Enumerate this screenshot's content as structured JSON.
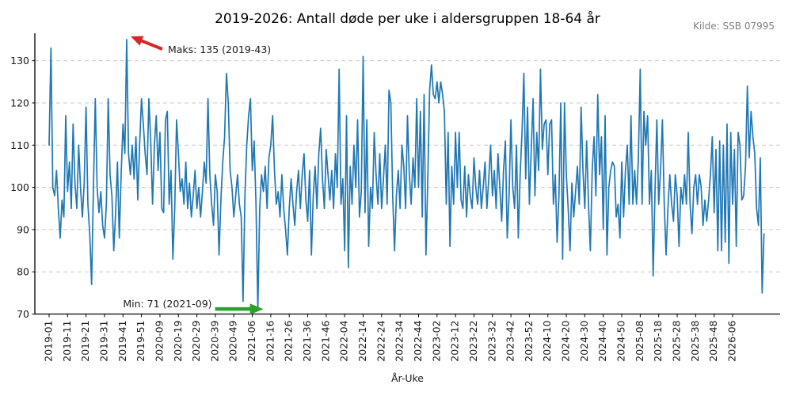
{
  "header": {
    "title": "2019-2026: Antall døde per uke i aldersgruppen 18-64 år",
    "source": "Kilde: SSB 07995"
  },
  "chart_data": {
    "type": "line",
    "title": "2019-2026: Antall døde per uke i aldersgruppen 18-64 år",
    "xlabel": "År-Uke",
    "ylabel": "",
    "ylim": [
      70,
      136.5
    ],
    "yticks": [
      70,
      80,
      90,
      100,
      110,
      120,
      130
    ],
    "grid": "horizontal-dashed",
    "legend": "none",
    "line_color": "#1f77b4",
    "grid_color": "#c9c9c9",
    "axis_color": "#000000",
    "x_tick_step_weeks": 10,
    "x_tick_labels": [
      "2019-01",
      "2019-11",
      "2019-21",
      "2019-31",
      "2019-41",
      "2019-51",
      "2020-09",
      "2020-19",
      "2020-29",
      "2020-39",
      "2020-49",
      "2021-06",
      "2021-16",
      "2021-26",
      "2021-36",
      "2021-46",
      "2022-04",
      "2022-14",
      "2022-24",
      "2022-34",
      "2022-44",
      "2023-02",
      "2023-12",
      "2023-22",
      "2023-32",
      "2023-42",
      "2023-52",
      "2024-10",
      "2024-20",
      "2024-30",
      "2024-40",
      "2024-50",
      "2025-08",
      "2025-18",
      "2025-28",
      "2025-38",
      "2025-48",
      "2026-06"
    ],
    "start_week": "2019-01",
    "year_order": [
      "2019",
      "2020",
      "2021",
      "2022",
      "2023",
      "2024",
      "2025",
      "2026"
    ],
    "weeks_per_year": {
      "2019": 52,
      "2020": 53,
      "2021": 52,
      "2022": 52,
      "2023": 52,
      "2024": 52,
      "2025": 52,
      "2026": 23
    },
    "series_name": "Antall døde per uke (18-64 år)",
    "values_by_year": {
      "2019": [
        110,
        133,
        100,
        98,
        104,
        95,
        88,
        97,
        93,
        117,
        99,
        106,
        95,
        115,
        101,
        95,
        110,
        100,
        93,
        101,
        119,
        96,
        89,
        77,
        100,
        121,
        100,
        94,
        99,
        91,
        88,
        96,
        121,
        103,
        98,
        85,
        94,
        106,
        88,
        103,
        115,
        108,
        135,
        108,
        103,
        110,
        102,
        112,
        97,
        110,
        121,
        115
      ],
      "2020": [
        108,
        103,
        121,
        111,
        96,
        110,
        117,
        104,
        113,
        95,
        94,
        116,
        118,
        96,
        104,
        83,
        95,
        116,
        108,
        99,
        102,
        96,
        106,
        95,
        101,
        93,
        98,
        104,
        95,
        100,
        93,
        99,
        106,
        101,
        121,
        103,
        96,
        91,
        103,
        99,
        84,
        97,
        106,
        112,
        127,
        120,
        104,
        100,
        93,
        98,
        103,
        96,
        93
      ],
      "2021": [
        73,
        98,
        110,
        117,
        121,
        104,
        111,
        96,
        71,
        95,
        103,
        99,
        105,
        95,
        107,
        110,
        117,
        104,
        96,
        99,
        93,
        103,
        95,
        90,
        84,
        95,
        102,
        96,
        91,
        99,
        104,
        95,
        103,
        108,
        97,
        92,
        104,
        84,
        98,
        105,
        95,
        108,
        114,
        102,
        95,
        109,
        103,
        97,
        104,
        95,
        108,
        100
      ],
      "2022": [
        128,
        96,
        102,
        85,
        117,
        81,
        105,
        96,
        110,
        100,
        116,
        93,
        99,
        131,
        94,
        116,
        86,
        100,
        95,
        113,
        103,
        96,
        108,
        95,
        102,
        110,
        96,
        123,
        120,
        98,
        85,
        98,
        104,
        95,
        110,
        105,
        95,
        117,
        103,
        96,
        107,
        100,
        121,
        100,
        118,
        93,
        122,
        84,
        102,
        123,
        129,
        122
      ],
      "2023": [
        121,
        125,
        120,
        125,
        122,
        118,
        96,
        113,
        86,
        105,
        96,
        113,
        100,
        113,
        97,
        95,
        105,
        93,
        103,
        98,
        95,
        107,
        100,
        96,
        104,
        95,
        100,
        106,
        95,
        102,
        110,
        98,
        104,
        95,
        108,
        100,
        92,
        104,
        111,
        88,
        98,
        116,
        100,
        95,
        110,
        88,
        103,
        113,
        127,
        102,
        119,
        96
      ],
      "2024": [
        109,
        121,
        98,
        113,
        104,
        128,
        109,
        115,
        116,
        103,
        115,
        116,
        96,
        103,
        87,
        98,
        120,
        83,
        120,
        103,
        95,
        85,
        101,
        93,
        99,
        105,
        96,
        119,
        104,
        95,
        111,
        96,
        85,
        104,
        112,
        98,
        122,
        103,
        112,
        90,
        117,
        84,
        100,
        104,
        106,
        105,
        93,
        96,
        88,
        106,
        93,
        104
      ],
      "2025": [
        110,
        96,
        117,
        96,
        104,
        96,
        107,
        128,
        96,
        118,
        110,
        117,
        96,
        104,
        79,
        99,
        116,
        96,
        104,
        116,
        96,
        84,
        95,
        103,
        96,
        92,
        103,
        98,
        86,
        100,
        96,
        103,
        96,
        113,
        96,
        89,
        100,
        103,
        96,
        103,
        100,
        91,
        97,
        92,
        97,
        103,
        112,
        94,
        109,
        85,
        111,
        85
      ],
      "2026": [
        110,
        87,
        115,
        82,
        113,
        96,
        109,
        86,
        113,
        110,
        97,
        98,
        105,
        124,
        107,
        118,
        112,
        108,
        95,
        91,
        107,
        75,
        89
      ]
    },
    "annotations": {
      "max": {
        "label": "Maks: 135 (2019-43)",
        "week": "2019-43",
        "value": 135,
        "arrow_color": "#d62728"
      },
      "min": {
        "label": "Min: 71 (2021-09)",
        "week": "2021-09",
        "value": 71,
        "arrow_color": "#2ca02c"
      }
    }
  }
}
